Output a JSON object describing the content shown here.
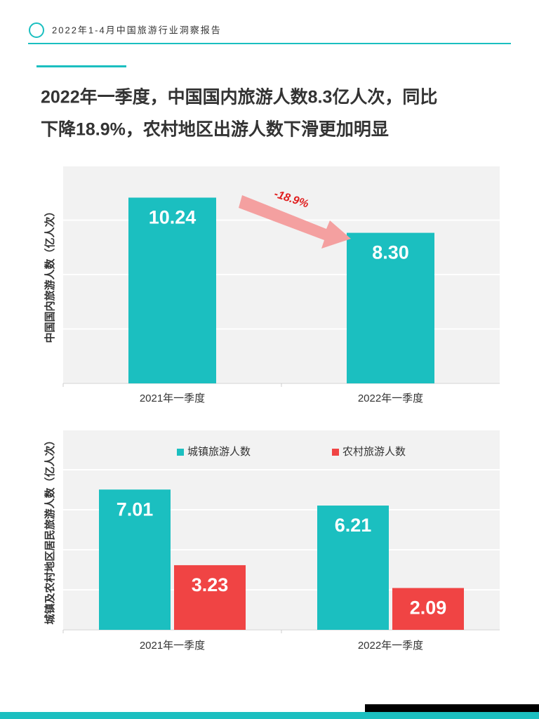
{
  "header": {
    "text": "2022年1-4月中国旅游行业洞察报告"
  },
  "title_lines": [
    "2022年一季度，中国国内旅游人数8.3亿人次，同比",
    "下降18.9%，农村地区出游人数下滑更加明显"
  ],
  "chart_data": [
    {
      "type": "bar",
      "ylabel": "中国国内旅游人数（亿人次）",
      "categories": [
        "2021年一季度",
        "2022年一季度"
      ],
      "values": [
        10.24,
        8.3
      ],
      "value_labels": [
        "10.24",
        "8.30"
      ],
      "color": "#1bbfc0",
      "ylim": [
        0,
        12
      ],
      "yticks": [
        0,
        3,
        6,
        9,
        12
      ],
      "grid": true,
      "annotation": "-18.9%"
    },
    {
      "type": "bar",
      "ylabel": "城镇及农村地区居民旅游人数（亿人次）",
      "categories": [
        "2021年一季度",
        "2022年一季度"
      ],
      "series": [
        {
          "name": "城镇旅游人数",
          "color": "#1bbfc0",
          "values": [
            7.01,
            6.21
          ]
        },
        {
          "name": "农村旅游人数",
          "color": "#f04444",
          "values": [
            3.23,
            2.09
          ]
        }
      ],
      "ylim": [
        0,
        10
      ],
      "yticks": [
        0,
        2,
        4,
        6,
        8,
        10
      ],
      "grid": true,
      "legend": "top"
    }
  ]
}
